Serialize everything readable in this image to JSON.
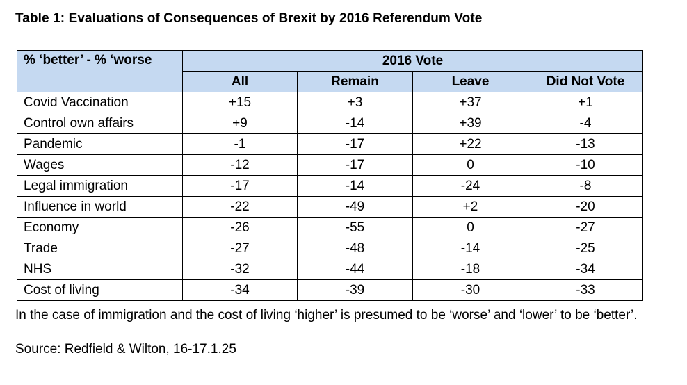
{
  "title": "Table 1: Evaluations of Consequences of Brexit by 2016 Referendum Vote",
  "table": {
    "corner_label": "% ‘better’ - % ‘worse",
    "group_header": "2016 Vote",
    "columns": [
      "All",
      "Remain",
      "Leave",
      "Did Not Vote"
    ],
    "rows": [
      {
        "label": "Covid Vaccination",
        "values": [
          "+15",
          "+3",
          "+37",
          "+1"
        ]
      },
      {
        "label": "Control own affairs",
        "values": [
          "+9",
          "-14",
          "+39",
          "-4"
        ]
      },
      {
        "label": "Pandemic",
        "values": [
          "-1",
          "-17",
          "+22",
          "-13"
        ]
      },
      {
        "label": "Wages",
        "values": [
          "-12",
          "-17",
          "0",
          "-10"
        ]
      },
      {
        "label": "Legal immigration",
        "values": [
          "-17",
          "-14",
          "-24",
          "-8"
        ]
      },
      {
        "label": "Influence in world",
        "values": [
          "-22",
          "-49",
          "+2",
          "-20"
        ]
      },
      {
        "label": "Economy",
        "values": [
          "-26",
          "-55",
          "0",
          "-27"
        ]
      },
      {
        "label": "Trade",
        "values": [
          "-27",
          "-48",
          "-14",
          "-25"
        ]
      },
      {
        "label": "NHS",
        "values": [
          "-32",
          "-44",
          "-18",
          "-34"
        ]
      },
      {
        "label": "Cost of living",
        "values": [
          "-34",
          "-39",
          "-30",
          "-33"
        ]
      }
    ]
  },
  "note": "In the case of immigration and the cost of living ‘higher’ is presumed to be ‘worse’ and ‘lower’ to be ‘better’.",
  "source": "Source: Redfield & Wilton, 16-17.1.25",
  "colors": {
    "header_fill": "#c5d9f1"
  }
}
